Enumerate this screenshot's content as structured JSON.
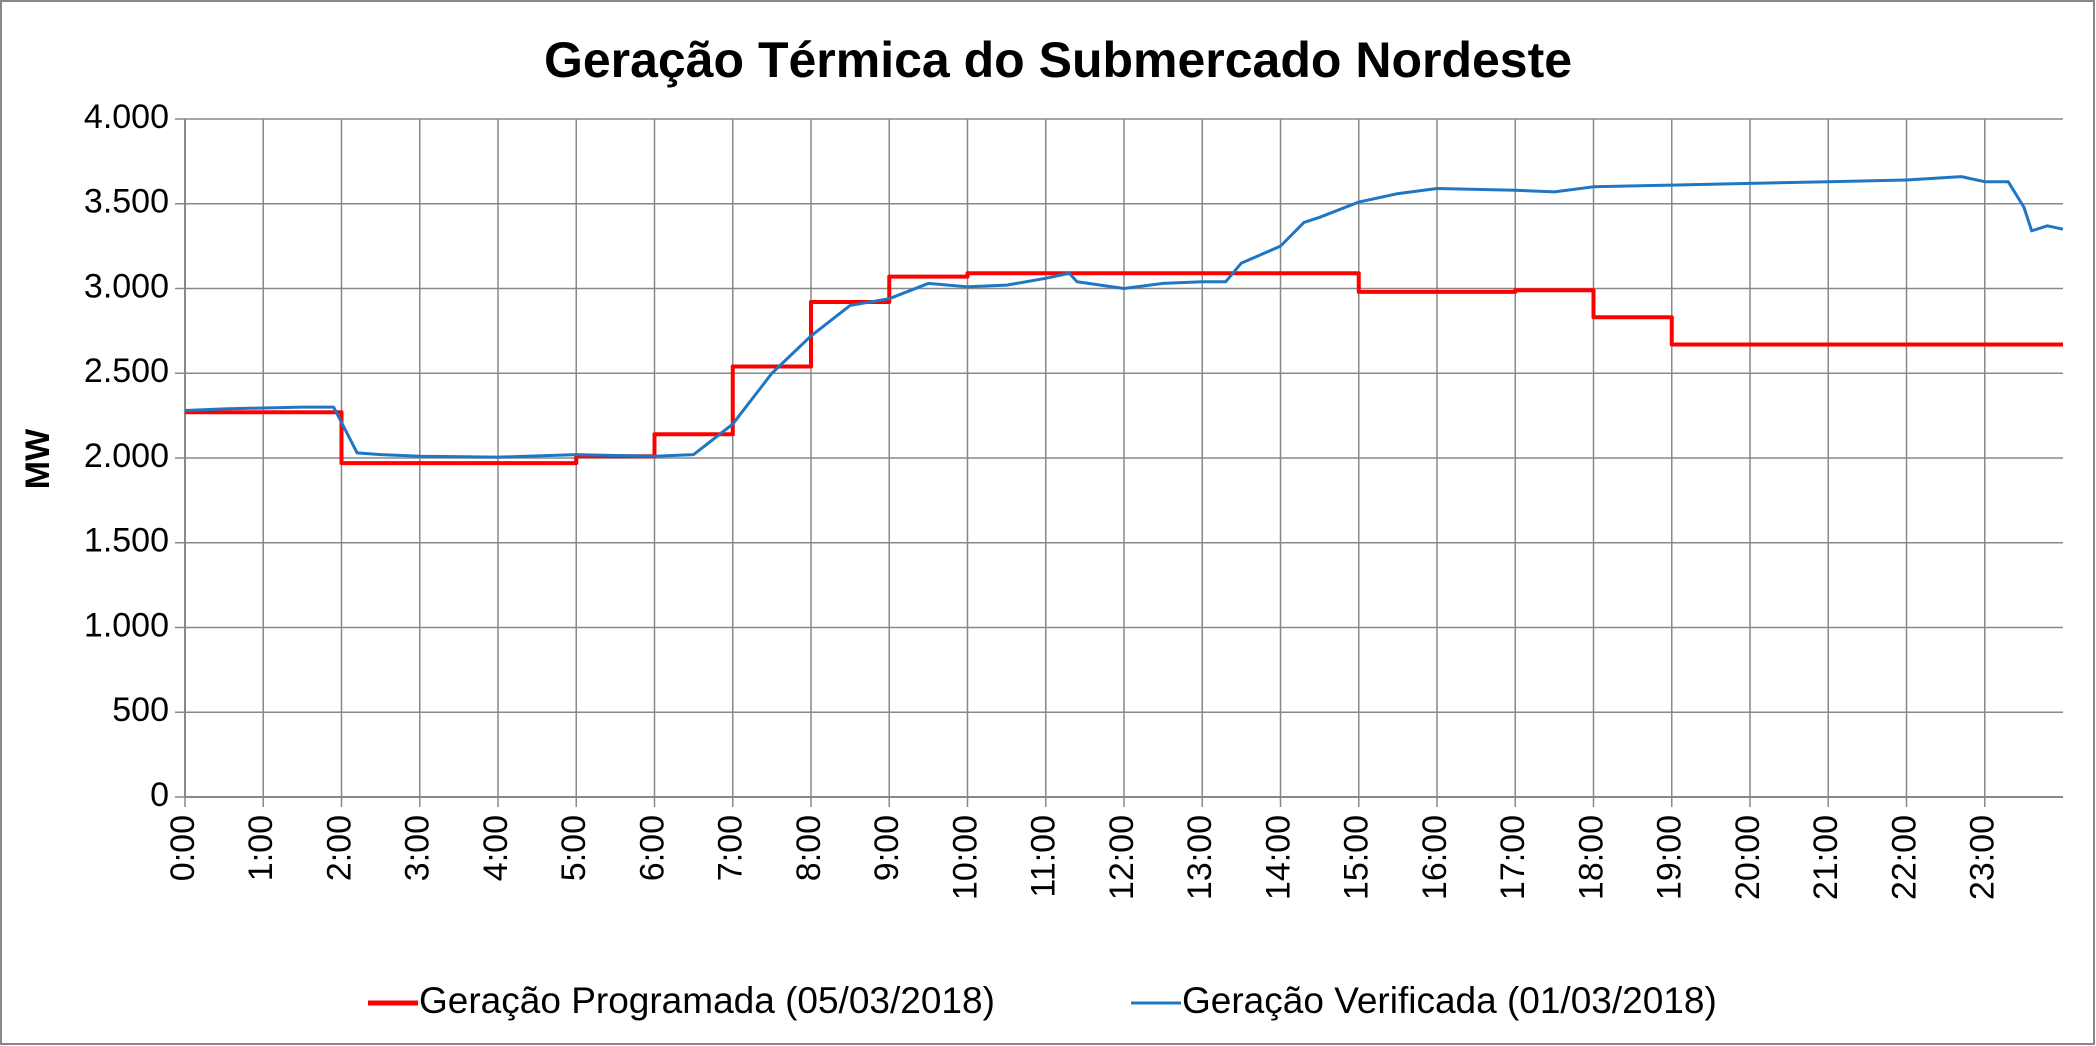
{
  "chart_data": {
    "type": "line",
    "title": "Geração Térmica do Submercado Nordeste",
    "y_label": "MW",
    "xlim": [
      0,
      24
    ],
    "xticks": [
      {
        "value": 0,
        "label": "0:00"
      },
      {
        "value": 1,
        "label": "1:00"
      },
      {
        "value": 2,
        "label": "2:00"
      },
      {
        "value": 3,
        "label": "3:00"
      },
      {
        "value": 4,
        "label": "4:00"
      },
      {
        "value": 5,
        "label": "5:00"
      },
      {
        "value": 6,
        "label": "6:00"
      },
      {
        "value": 7,
        "label": "7:00"
      },
      {
        "value": 8,
        "label": "8:00"
      },
      {
        "value": 9,
        "label": "9:00"
      },
      {
        "value": 10,
        "label": "10:00"
      },
      {
        "value": 11,
        "label": "11:00"
      },
      {
        "value": 12,
        "label": "12:00"
      },
      {
        "value": 13,
        "label": "13:00"
      },
      {
        "value": 14,
        "label": "14:00"
      },
      {
        "value": 15,
        "label": "15:00"
      },
      {
        "value": 16,
        "label": "16:00"
      },
      {
        "value": 17,
        "label": "17:00"
      },
      {
        "value": 18,
        "label": "18:00"
      },
      {
        "value": 19,
        "label": "19:00"
      },
      {
        "value": 20,
        "label": "20:00"
      },
      {
        "value": 21,
        "label": "21:00"
      },
      {
        "value": 22,
        "label": "22:00"
      },
      {
        "value": 23,
        "label": "23:00"
      }
    ],
    "ylim": [
      0,
      4000
    ],
    "yticks": [
      0,
      500,
      {
        "value": 1000,
        "label": "1.000"
      },
      {
        "value": 1500,
        "label": "1.500"
      },
      {
        "value": 2000,
        "label": "2.000"
      },
      {
        "value": 2500,
        "label": "2.500"
      },
      {
        "value": 3000,
        "label": "3.000"
      },
      {
        "value": 3500,
        "label": "3.500"
      },
      {
        "value": 4000,
        "label": "4.000"
      }
    ],
    "grid": true,
    "legend": "bottom",
    "series": [
      {
        "name": "Geração Programada (05/03/2018)",
        "color": "#ff0000",
        "x": [
          0,
          2,
          2,
          5,
          5,
          6,
          6,
          7,
          7,
          8,
          8,
          9,
          9,
          10,
          10,
          15,
          15,
          17,
          17,
          18,
          18,
          19,
          19,
          24
        ],
        "values": [
          2270,
          2270,
          1970,
          1970,
          2010,
          2010,
          2140,
          2140,
          2540,
          2540,
          2920,
          2920,
          3070,
          3070,
          3090,
          3090,
          2980,
          2980,
          2990,
          2990,
          2830,
          2830,
          2670,
          2670
        ]
      },
      {
        "name": "Geração Verificada (01/03/2018)",
        "color": "#1f77c4",
        "x": [
          0,
          0.5,
          1,
          1.5,
          1.9,
          2.2,
          2.5,
          3,
          4,
          5,
          5.5,
          6,
          6.5,
          7,
          7.5,
          8,
          8.5,
          9,
          9.5,
          10,
          10.5,
          11,
          11.3,
          11.4,
          12,
          12.5,
          13,
          13.3,
          13.5,
          14,
          14.3,
          14.5,
          15,
          15.5,
          16,
          17,
          17.5,
          18,
          19,
          20,
          21,
          22,
          22.7,
          23,
          23.3,
          23.5,
          23.6,
          23.8,
          24
        ],
        "values": [
          2280,
          2290,
          2295,
          2300,
          2300,
          2030,
          2020,
          2010,
          2005,
          2020,
          2015,
          2010,
          2020,
          2200,
          2500,
          2720,
          2900,
          2940,
          3030,
          3010,
          3020,
          3060,
          3090,
          3040,
          3000,
          3030,
          3040,
          3040,
          3150,
          3250,
          3390,
          3420,
          3510,
          3560,
          3590,
          3580,
          3570,
          3600,
          3610,
          3620,
          3630,
          3640,
          3660,
          3630,
          3630,
          3480,
          3340,
          3370,
          3350
        ]
      }
    ]
  }
}
